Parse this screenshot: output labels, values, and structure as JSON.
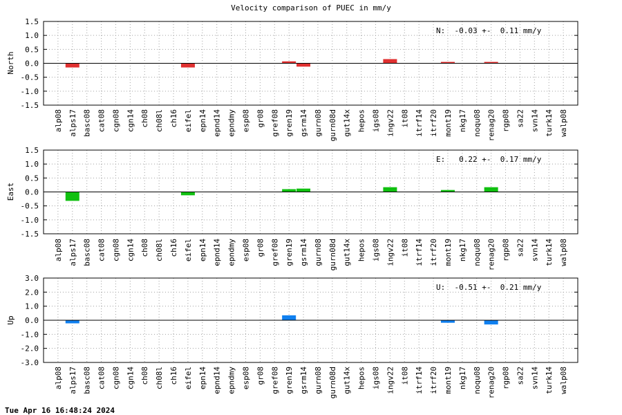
{
  "title": "Velocity comparison of PUEC in mm/y",
  "timestamp": "Tue Apr 16 16:48:24 2024",
  "chart_data": [
    {
      "type": "bar",
      "ylabel": "North",
      "ylim": [
        -1.5,
        1.5
      ],
      "yticks": [
        "1.5",
        "1.0",
        "0.5",
        "0.0",
        "-0.5",
        "-1.0",
        "-1.5"
      ],
      "ytick_values": [
        1.5,
        1.0,
        0.5,
        0.0,
        -0.5,
        -1.0,
        -1.5
      ],
      "grid": true,
      "color": "#e03030",
      "annotation": "N:  -0.03 +-  0.11 mm/y",
      "categories": [
        "alp08",
        "alps17",
        "basc08",
        "cat08",
        "cgn08",
        "cgn14",
        "ch08",
        "ch08l",
        "ch16",
        "eifel",
        "epn14",
        "epnd14",
        "epndmy",
        "esp08",
        "gr08",
        "gref08",
        "gren19",
        "gsrm14",
        "gurn08",
        "gurn08d",
        "gut14x",
        "hepos",
        "igs08",
        "ingv22",
        "it08",
        "itrf14",
        "itrf20",
        "mont19",
        "nkg17",
        "noqu08",
        "renag20",
        "rgp08",
        "sa22",
        "svn14",
        "turk14",
        "walp08"
      ],
      "values": [
        null,
        -0.15,
        null,
        null,
        null,
        null,
        null,
        null,
        null,
        -0.15,
        null,
        null,
        null,
        null,
        null,
        null,
        0.07,
        -0.12,
        null,
        null,
        null,
        null,
        null,
        0.15,
        null,
        null,
        null,
        0.02,
        null,
        null,
        0.02,
        null,
        null,
        null,
        null,
        null
      ]
    },
    {
      "type": "bar",
      "ylabel": "East",
      "ylim": [
        -1.5,
        1.5
      ],
      "yticks": [
        "1.5",
        "1.0",
        "0.5",
        "0.0",
        "-0.5",
        "-1.0",
        "-1.5"
      ],
      "ytick_values": [
        1.5,
        1.0,
        0.5,
        0.0,
        -0.5,
        -1.0,
        -1.5
      ],
      "grid": true,
      "color": "#10c010",
      "annotation": "E:   0.22 +-  0.17 mm/y",
      "categories": [
        "alp08",
        "alps17",
        "basc08",
        "cat08",
        "cgn08",
        "cgn14",
        "ch08",
        "ch08l",
        "ch16",
        "eifel",
        "epn14",
        "epnd14",
        "epndmy",
        "esp08",
        "gr08",
        "gref08",
        "gren19",
        "gsrm14",
        "gurn08",
        "gurn08d",
        "gut14x",
        "hepos",
        "igs08",
        "ingv22",
        "it08",
        "itrf14",
        "itrf20",
        "mont19",
        "nkg17",
        "noqu08",
        "renag20",
        "rgp08",
        "sa22",
        "svn14",
        "turk14",
        "walp08"
      ],
      "values": [
        null,
        -0.32,
        null,
        null,
        null,
        null,
        null,
        null,
        null,
        -0.12,
        null,
        null,
        null,
        null,
        null,
        null,
        0.1,
        0.12,
        null,
        null,
        null,
        null,
        null,
        0.17,
        null,
        null,
        null,
        0.07,
        null,
        null,
        0.17,
        null,
        null,
        null,
        null,
        null
      ]
    },
    {
      "type": "bar",
      "ylabel": "Up",
      "ylim": [
        -3.0,
        3.0
      ],
      "yticks": [
        "3.0",
        "2.0",
        "1.0",
        "0.0",
        "-1.0",
        "-2.0",
        "-3.0"
      ],
      "ytick_values": [
        3.0,
        2.0,
        1.0,
        0.0,
        -1.0,
        -2.0,
        -3.0
      ],
      "grid": true,
      "color": "#1080f0",
      "annotation": "U:  -0.51 +-  0.21 mm/y",
      "categories": [
        "alp08",
        "alps17",
        "basc08",
        "cat08",
        "cgn08",
        "cgn14",
        "ch08",
        "ch08l",
        "ch16",
        "eifel",
        "epn14",
        "epnd14",
        "epndmy",
        "esp08",
        "gr08",
        "gref08",
        "gren19",
        "gsrm14",
        "gurn08",
        "gurn08d",
        "gut14x",
        "hepos",
        "igs08",
        "ingv22",
        "it08",
        "itrf14",
        "itrf20",
        "mont19",
        "nkg17",
        "noqu08",
        "renag20",
        "rgp08",
        "sa22",
        "svn14",
        "turk14",
        "walp08"
      ],
      "values": [
        null,
        -0.22,
        null,
        null,
        null,
        null,
        null,
        null,
        null,
        null,
        null,
        null,
        null,
        null,
        null,
        null,
        0.35,
        null,
        null,
        null,
        null,
        null,
        null,
        null,
        null,
        null,
        null,
        -0.18,
        null,
        null,
        -0.3,
        null,
        null,
        null,
        null,
        null
      ]
    }
  ]
}
